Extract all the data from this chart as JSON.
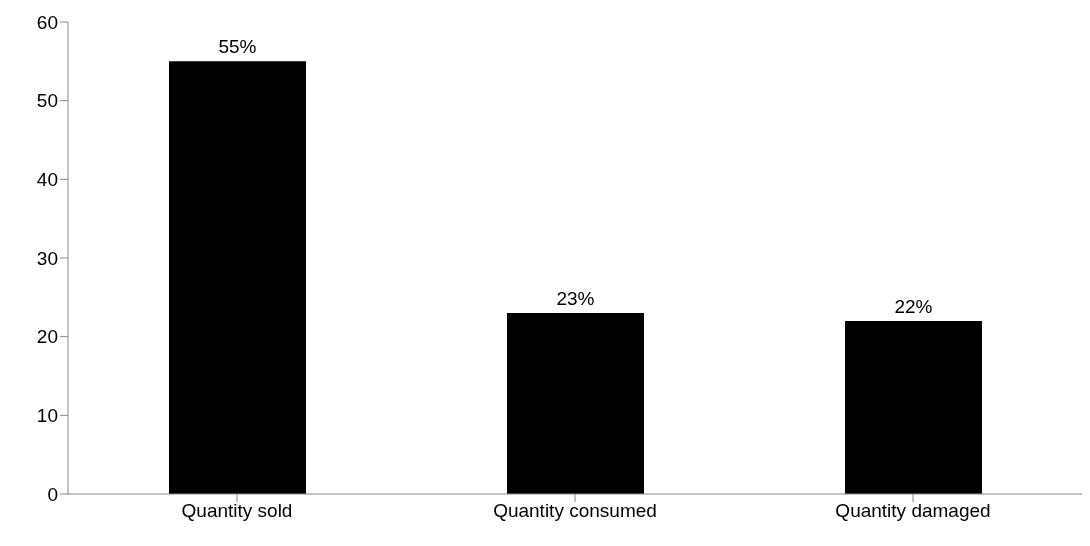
{
  "chart_data": {
    "type": "bar",
    "categories": [
      "Quantity sold",
      "Quantity consumed",
      "Quantity damaged"
    ],
    "values": [
      55,
      23,
      22
    ],
    "color": "#000000",
    "value_labels": [
      "55%",
      "23%",
      "22%"
    ],
    "ylim": [
      0,
      60
    ],
    "yticks": [
      0,
      10,
      20,
      30,
      40,
      50,
      60
    ],
    "grid": false,
    "legend": false
  }
}
